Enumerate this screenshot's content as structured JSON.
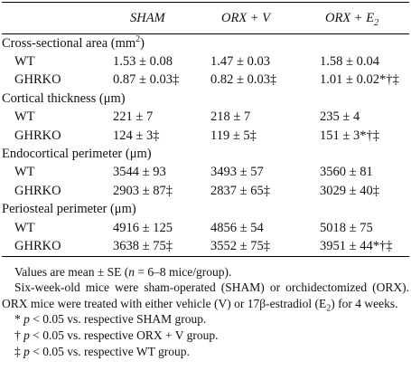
{
  "table": {
    "columns": [
      [
        {
          "t": "SHAM"
        }
      ],
      [
        {
          "t": "ORX + V"
        }
      ],
      [
        {
          "t": "ORX + E"
        },
        {
          "t": "2",
          "f": "sub"
        }
      ]
    ],
    "sections": [
      {
        "title": [
          {
            "t": "Cross-sectional area (mm"
          },
          {
            "t": "2",
            "f": "sup"
          },
          {
            "t": ")"
          }
        ],
        "rows": [
          [
            "WT",
            "1.53 ± 0.08",
            "1.47 ± 0.03",
            "1.58 ± 0.04"
          ],
          [
            "GHRKO",
            "0.87 ± 0.03‡",
            "0.82 ± 0.03‡",
            "1.01 ± 0.02*†‡"
          ]
        ]
      },
      {
        "title": [
          {
            "t": "Cortical thickness (μm)"
          }
        ],
        "rows": [
          [
            "WT",
            "221 ± 7",
            "218 ± 7",
            "235 ± 4"
          ],
          [
            "GHRKO",
            "124 ± 3‡",
            "119 ± 5‡",
            "151 ± 3*†‡"
          ]
        ]
      },
      {
        "title": [
          {
            "t": "Endocortical perimeter (μm)"
          }
        ],
        "rows": [
          [
            "WT",
            "3544 ± 93",
            "3493 ± 57",
            "3560 ± 81"
          ],
          [
            "GHRKO",
            "2903 ± 87‡",
            "2837 ± 65‡",
            "3029 ± 40‡"
          ]
        ]
      },
      {
        "title": [
          {
            "t": "Periosteal perimeter (μm)"
          }
        ],
        "rows": [
          [
            "WT",
            "4916 ± 125",
            "4856 ± 54",
            "5018 ± 75"
          ],
          [
            "GHRKO",
            "3638 ± 75‡",
            "3552 ± 75‡",
            "3951 ± 44*†‡"
          ]
        ]
      }
    ]
  },
  "notes": [
    [
      {
        "t": "Values are mean ± SE ("
      },
      {
        "t": "n",
        "f": "i"
      },
      {
        "t": " = 6–8 mice/group)."
      }
    ],
    [
      {
        "t": "Six-week-old mice were sham-operated (SHAM) or orchidectomized (ORX). ORX mice were treated with either vehicle (V) or 17β-estradiol (E"
      },
      {
        "t": "2",
        "f": "sub"
      },
      {
        "t": ") for 4 weeks."
      }
    ],
    [
      {
        "t": "* "
      },
      {
        "t": "p",
        "f": "i"
      },
      {
        "t": " < 0.05 vs. respective SHAM group."
      }
    ],
    [
      {
        "t": "† "
      },
      {
        "t": "p",
        "f": "i"
      },
      {
        "t": " < 0.05 vs. respective ORX + V group."
      }
    ],
    [
      {
        "t": "‡ "
      },
      {
        "t": "p",
        "f": "i"
      },
      {
        "t": " < 0.05 vs. respective WT group."
      }
    ]
  ]
}
